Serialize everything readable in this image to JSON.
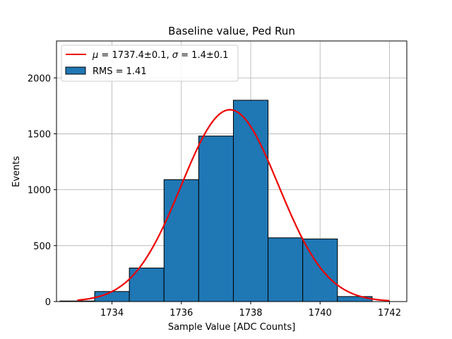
{
  "chart_data": {
    "type": "bar",
    "title": "Baseline value, Ped Run",
    "xlabel": "Sample Value [ADC Counts]",
    "ylabel": "Events",
    "xlim": [
      1732.4,
      1742.5
    ],
    "ylim": [
      0,
      2330
    ],
    "xticks": [
      1734,
      1736,
      1738,
      1740,
      1742
    ],
    "yticks": [
      0,
      500,
      1000,
      1500,
      2000
    ],
    "grid": true,
    "legend_position": "top-left",
    "bins": [
      {
        "left": 1732.5,
        "right": 1733.5,
        "value": 5
      },
      {
        "left": 1733.5,
        "right": 1734.5,
        "value": 90
      },
      {
        "left": 1734.5,
        "right": 1735.5,
        "value": 300
      },
      {
        "left": 1735.5,
        "right": 1736.5,
        "value": 1090
      },
      {
        "left": 1736.5,
        "right": 1737.5,
        "value": 1480
      },
      {
        "left": 1737.5,
        "right": 1738.5,
        "value": 1800
      },
      {
        "left": 1738.5,
        "right": 1739.5,
        "value": 570
      },
      {
        "left": 1739.5,
        "right": 1740.5,
        "value": 560
      },
      {
        "left": 1740.5,
        "right": 1741.5,
        "value": 45
      }
    ],
    "fit": {
      "mu": 1737.4,
      "sigma": 1.4,
      "amplitude": 1715,
      "x_range": [
        1733,
        1742
      ]
    },
    "series": [
      {
        "name": "RMS = 1.41",
        "color": "#1f77b4",
        "kind": "histogram"
      },
      {
        "name": "μ = 1737.4±0.1, σ = 1.4±0.1",
        "color": "#ee0000",
        "kind": "fit-line"
      }
    ],
    "legend": {
      "fit_mu_symbol": "μ",
      "fit_mu_text": " = 1737.4±0.1, ",
      "fit_sigma_symbol": "σ",
      "fit_sigma_text": " = 1.4±0.1",
      "hist_label": "RMS = 1.41"
    }
  }
}
